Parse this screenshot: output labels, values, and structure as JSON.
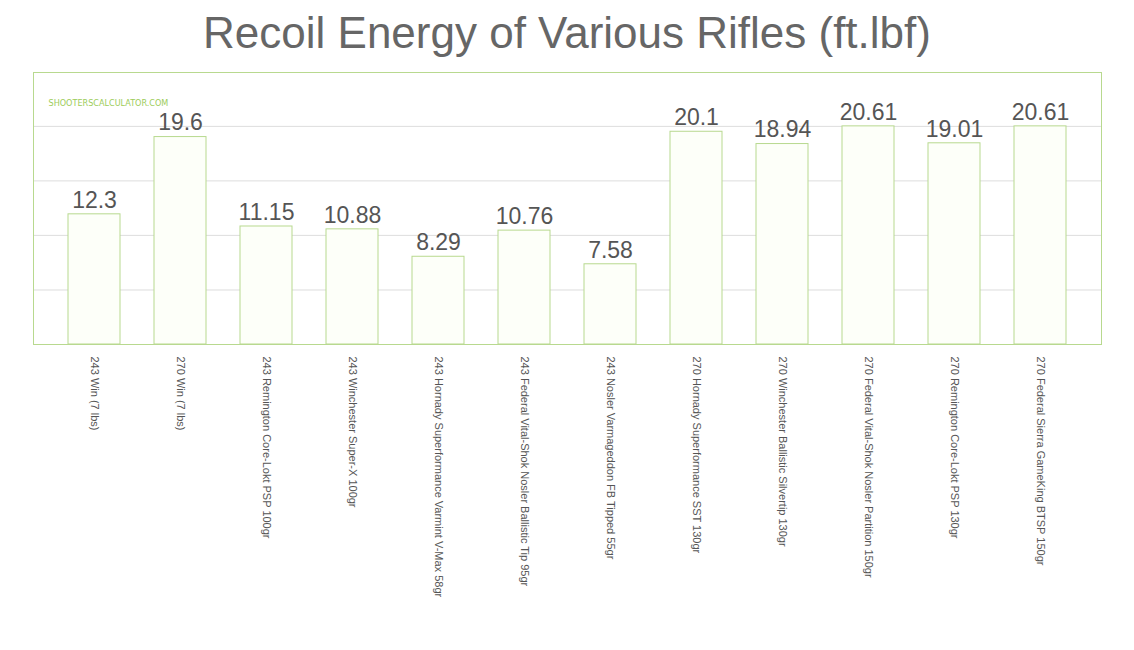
{
  "chart_data": {
    "type": "bar",
    "title": "Recoil Energy of Various Rifles (ft.lbf)",
    "annotations": [
      "SHOOTERSCALCULATOR.COM"
    ],
    "categories": [
      "243 Win (7 lbs)",
      "270 Win (7 lbs)",
      "243 Remington Core-Lokt PSP 100gr",
      "243 Winchester Super-X 100gr",
      "243 Hornady Superformance Varmint V-Max 58gr",
      "243 Federal Vital-Shok Nosler Ballistic Tip 95gr",
      "243 Nosler Varmageddon FB Tipped 55gr",
      "270 Hornady Superformance SST 130gr",
      "270 Winchester Ballistic Silvertip 130gr",
      "270 Federal Vital-Shok Nosler Partition 150gr",
      "270 Remington Core-Lokt PSP 130gr",
      "270 Federal Sierra GameKing BTSP 150gr"
    ],
    "values": [
      12.3,
      19.6,
      11.15,
      10.88,
      8.29,
      10.76,
      7.58,
      20.1,
      18.94,
      20.61,
      19.01,
      20.61
    ],
    "color": "#b8d98f",
    "ylim": [
      0,
      25.7
    ],
    "yticks": [
      0,
      5.15,
      10.31,
      15.46,
      20.61
    ],
    "grid": true,
    "data_labels": true,
    "tick_labels": "x"
  }
}
